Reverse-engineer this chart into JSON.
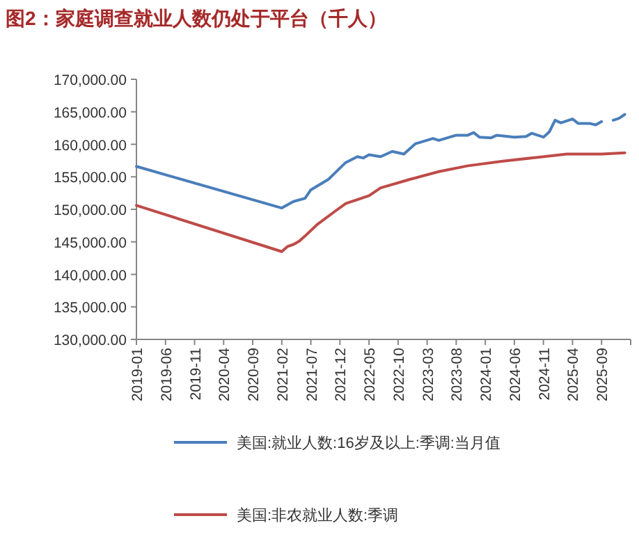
{
  "chart_data": {
    "type": "line",
    "title": "图2：家庭调查就业人数仍处于平台（千人）",
    "xlim": [
      "2019-01",
      "2026-02"
    ],
    "xticks": [
      "2019-01",
      "2019-06",
      "2019-11",
      "2020-04",
      "2020-09",
      "2021-02",
      "2021-07",
      "2021-12",
      "2022-05",
      "2022-10",
      "2023-03",
      "2023-08",
      "2024-01",
      "2024-06",
      "2024-11",
      "2025-04",
      "2025-09"
    ],
    "ylim": [
      130000,
      170000
    ],
    "yticks": [
      {
        "value": 130000,
        "label": "130,000.00"
      },
      {
        "value": 135000,
        "label": "135,000.00"
      },
      {
        "value": 140000,
        "label": "140,000.00"
      },
      {
        "value": 145000,
        "label": "145,000.00"
      },
      {
        "value": 150000,
        "label": "150,000.00"
      },
      {
        "value": 155000,
        "label": "155,000.00"
      },
      {
        "value": 160000,
        "label": "160,000.00"
      },
      {
        "value": 165000,
        "label": "165,000.00"
      },
      {
        "value": 170000,
        "label": "170,000.00"
      }
    ],
    "grid": false,
    "legend": "bottom",
    "marker": "none",
    "line_style": "solid",
    "series": [
      {
        "name": "美国:就业人数:16岁及以上:季调:当月值",
        "color": "#4a7ebb",
        "x": [
          "2019-01",
          "2021-02",
          "2021-04",
          "2021-06",
          "2021-07",
          "2021-10",
          "2022-01",
          "2022-03",
          "2022-04",
          "2022-05",
          "2022-07",
          "2022-09",
          "2022-11",
          "2023-01",
          "2023-04",
          "2023-05",
          "2023-08",
          "2023-10",
          "2023-11",
          "2023-12",
          "2024-02",
          "2024-03",
          "2024-06",
          "2024-08",
          "2024-09",
          "2024-11",
          "2024-12",
          "2025-01",
          "2025-02",
          "2025-04",
          "2025-05",
          "2025-07",
          "2025-08",
          "2025-09"
        ],
        "values": [
          156600,
          150200,
          151200,
          151700,
          153000,
          154600,
          157200,
          158100,
          157900,
          158400,
          158100,
          158900,
          158500,
          160100,
          160900,
          160600,
          161400,
          161400,
          161800,
          161100,
          161000,
          161400,
          161100,
          161200,
          161700,
          161100,
          161900,
          163700,
          163300,
          163900,
          163200,
          163200,
          163000,
          163500
        ]
      },
      {
        "color": "#4a7ebb",
        "x": [
          "2025-11",
          "2025-12",
          "2026-01"
        ],
        "values": [
          163700,
          164000,
          164600
        ]
      },
      {
        "name": "美国:非农就业人数:季调",
        "color": "#be4b48",
        "x": [
          "2019-01",
          "2021-02",
          "2021-03",
          "2021-04",
          "2021-05",
          "2021-06",
          "2021-08",
          "2021-11",
          "2022-01",
          "2022-05",
          "2022-07",
          "2022-12",
          "2023-05",
          "2023-10",
          "2024-04",
          "2024-10",
          "2025-03",
          "2025-09",
          "2026-01"
        ],
        "values": [
          150600,
          143500,
          144300,
          144600,
          145100,
          145900,
          147600,
          149600,
          150900,
          152100,
          153300,
          154600,
          155800,
          156700,
          157400,
          158000,
          158500,
          158500,
          158700
        ]
      }
    ]
  }
}
